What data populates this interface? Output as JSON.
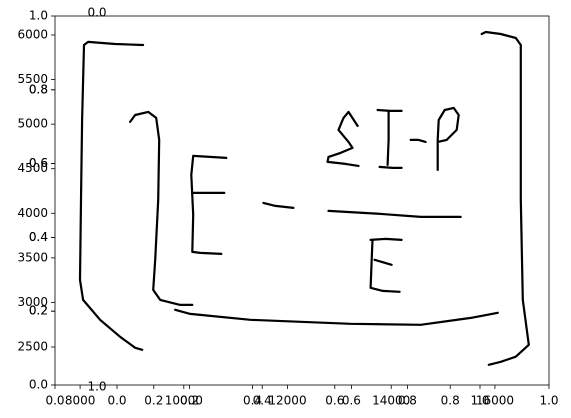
{
  "chart_data": [
    {
      "type": "line",
      "xlim": [
        0,
        1
      ],
      "ylim": [
        0,
        1
      ],
      "xticks": [
        {
          "value": 0,
          "label": "0.0"
        },
        0.2,
        0.4,
        0.6,
        0.8,
        {
          "value": 1,
          "label": "1.0"
        }
      ],
      "yticks": [
        {
          "value": 0,
          "label": "0.0"
        },
        0.2,
        0.4,
        0.6,
        0.8,
        {
          "value": 1,
          "label": "1.0"
        }
      ]
    },
    {
      "type": "line",
      "xlim": [
        7516,
        17043
      ],
      "ylim": [
        2074,
        6213
      ],
      "xticks": [
        8000,
        10000,
        12000,
        14000,
        16000
      ],
      "yticks": [
        2500,
        3000,
        3500,
        4000,
        4500,
        5000,
        5500,
        6000
      ],
      "series": [
        {
          "color": "#000000",
          "x": [
            9216,
            8675,
            8154,
            8076,
            8038,
            8018,
            7999,
            8057,
            8385,
            8772,
            9062,
            9197
          ],
          "values": [
            5888,
            5899,
            5922,
            5888,
            5047,
            4150,
            3253,
            3029,
            2805,
            2615,
            2491,
            2469
          ]
        },
        {
          "color": "#000000",
          "x": [
            8965,
            9062,
            9313,
            9467,
            9525,
            9506,
            9448,
            9409,
            9545,
            9931,
            10163
          ],
          "values": [
            5025,
            5103,
            5137,
            5070,
            4823,
            4150,
            3478,
            3141,
            3029,
            2973,
            2973
          ]
        },
        {
          "color": "#000000",
          "x": [
            10820,
            10182,
            10144,
            10182,
            10163,
            10317,
            10723
          ],
          "values": [
            4621,
            4644,
            4431,
            3982,
            3567,
            3556,
            3545
          ]
        },
        {
          "color": "#000000",
          "x": [
            10163,
            10781
          ],
          "values": [
            4229,
            4229
          ]
        },
        {
          "color": "#000000",
          "x": [
            11535,
            11766,
            12114
          ],
          "values": [
            4117,
            4083,
            4061
          ]
        },
        {
          "color": "#000000",
          "x": [
            13351,
            13177,
            13080,
            12984,
            13177,
            13254,
            13022,
            12790,
            12771,
            13119,
            13370
          ],
          "values": [
            4980,
            5137,
            5070,
            4935,
            4801,
            4733,
            4677,
            4632,
            4577,
            4554,
            4532
          ]
        },
        {
          "color": "#000000",
          "x": [
            13737,
            13988,
            14201
          ],
          "values": [
            5159,
            5148,
            5148
          ]
        },
        {
          "color": "#000000",
          "x": [
            13949,
            13949,
            13930
          ],
          "values": [
            5137,
            4823,
            4543
          ]
        },
        {
          "color": "#000000",
          "x": [
            13776,
            14027,
            14201
          ],
          "values": [
            4520,
            4509,
            4509
          ]
        },
        {
          "color": "#000000",
          "x": [
            14375,
            14529,
            14664
          ],
          "values": [
            4823,
            4823,
            4801
          ]
        },
        {
          "color": "#000000",
          "x": [
            14896,
            14896,
            14916,
            15031,
            15205,
            15302,
            15263,
            15070,
            14896
          ],
          "values": [
            4487,
            4823,
            5047,
            5159,
            5182,
            5103,
            4935,
            4823,
            4801
          ]
        },
        {
          "color": "#000000",
          "x": [
            12790,
            13795,
            14568,
            15341
          ],
          "values": [
            4027,
            3993,
            3960,
            3960
          ]
        },
        {
          "color": "#000000",
          "x": [
            13602,
            13892,
            14201
          ],
          "values": [
            3702,
            3713,
            3702
          ]
        },
        {
          "color": "#000000",
          "x": [
            13640,
            13621,
            13602,
            13834,
            14162
          ],
          "values": [
            3702,
            3455,
            3164,
            3130,
            3119
          ]
        },
        {
          "color": "#000000",
          "x": [
            13679,
            14007
          ],
          "values": [
            3478,
            3422
          ]
        },
        {
          "color": "#000000",
          "x": [
            9834,
            10124,
            11283,
            13215,
            14568,
            15534,
            16055
          ],
          "values": [
            2917,
            2872,
            2805,
            2760,
            2749,
            2827,
            2884
          ]
        },
        {
          "color": "#000000",
          "x": [
            15746,
            15824,
            16113,
            16402,
            16500,
            16500,
            16500,
            16538,
            16654,
            16402,
            16113,
            15882
          ],
          "values": [
            6011,
            6034,
            6011,
            5966,
            5888,
            5271,
            4150,
            3029,
            2525,
            2391,
            2334,
            2301
          ]
        }
      ]
    },
    {
      "type": "line",
      "xlim": [
        0,
        1
      ],
      "ylim": [
        0,
        1
      ],
      "xticks": [
        {
          "value": 0,
          "label": "0.0"
        },
        0.2,
        0.4,
        0.6,
        0.8,
        {
          "value": 1,
          "label": "1.0"
        }
      ],
      "yticks": [
        0.2,
        0.4,
        0.6,
        0.8
      ],
      "annotations": [
        "0.0",
        "1.0"
      ]
    }
  ]
}
